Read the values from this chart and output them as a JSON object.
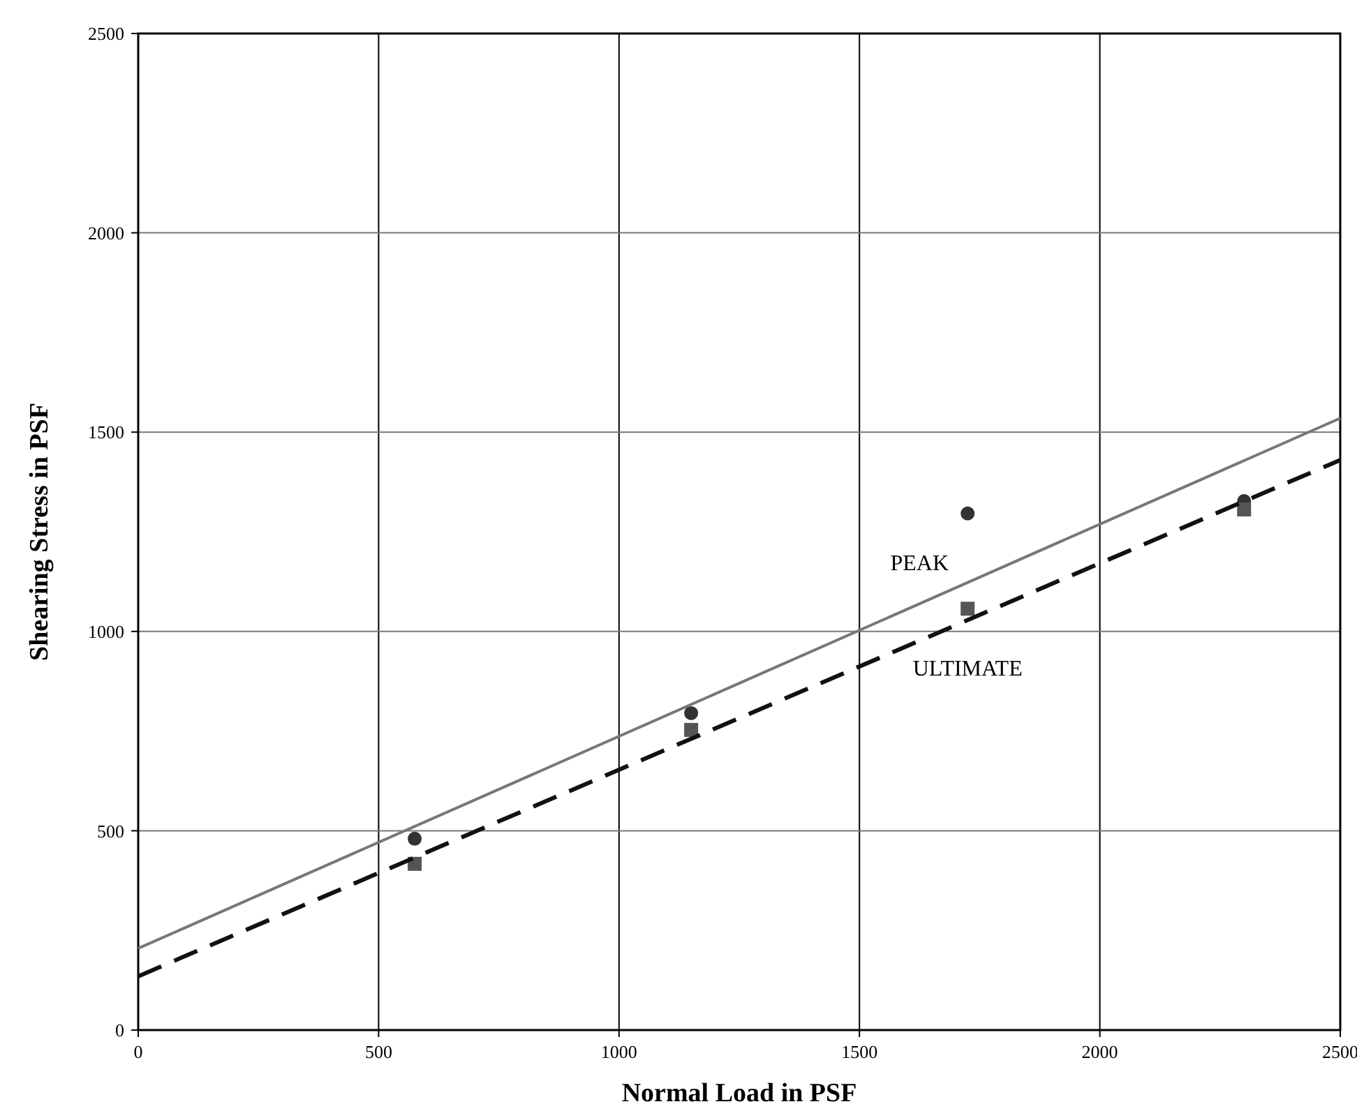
{
  "chart_data": {
    "type": "scatter",
    "xlabel": "Normal Load in PSF",
    "ylabel": "Shearing Stress in PSF",
    "xlim": [
      0,
      2500
    ],
    "xticks": [
      0,
      500,
      1000,
      1500,
      2000,
      2500
    ],
    "ylim": [
      0,
      2500
    ],
    "yticks": [
      0,
      500,
      1000,
      1500,
      2000,
      2500
    ],
    "grid": true,
    "series": [
      {
        "color": "#333333",
        "marker": "circle",
        "x": [
          575,
          1150,
          1725,
          2300
        ],
        "values": [
          480,
          795,
          1296,
          1327
        ]
      },
      {
        "color": "#555555",
        "marker": "square",
        "x": [
          575,
          1150,
          1725,
          2300
        ],
        "values": [
          417,
          753,
          1057,
          1306
        ]
      },
      {
        "type": "line",
        "name": "PEAK",
        "color": "#777777",
        "line_style": "solid",
        "x": [
          0,
          2500
        ],
        "values": [
          205,
          1535
        ]
      },
      {
        "type": "line",
        "name": "ULTIMATE",
        "color": "#111111",
        "line_style": "dashed",
        "x": [
          0,
          2500
        ],
        "values": [
          135,
          1430
        ]
      }
    ]
  }
}
